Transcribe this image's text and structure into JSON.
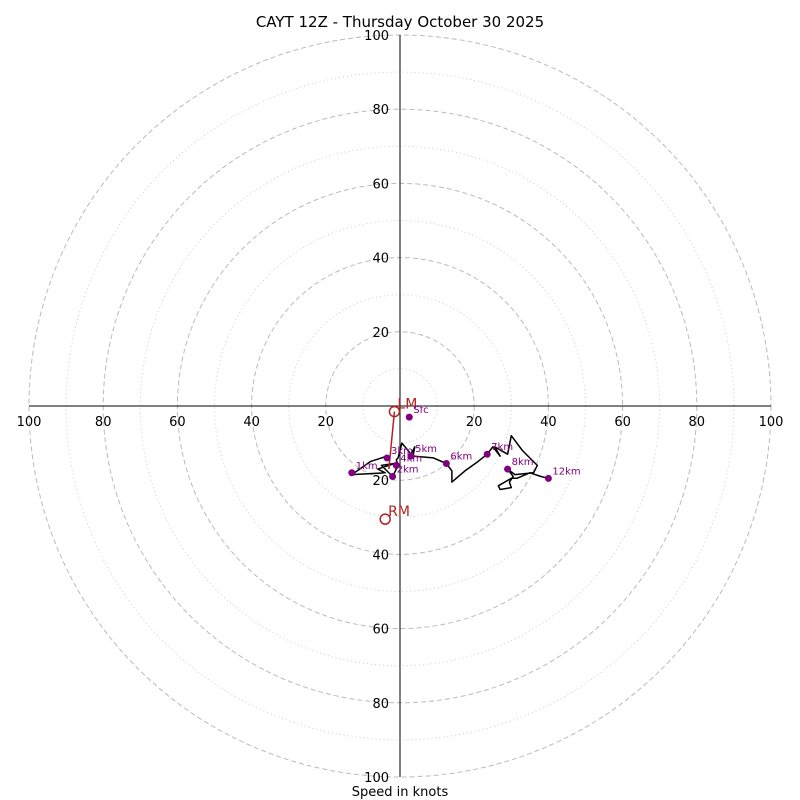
{
  "chart_data": {
    "type": "hodograph",
    "title": "CAYT 12Z - Thursday October 30 2025",
    "xlabel": "Speed in knots",
    "range": [
      -100,
      100
    ],
    "rings_major": [
      20,
      40,
      60,
      80,
      100
    ],
    "rings_minor": [
      10,
      30,
      50,
      70,
      90
    ],
    "ticks": [
      100,
      80,
      60,
      40,
      20
    ],
    "colors": {
      "trace": "#000000",
      "marker": "#800080",
      "motion": "#b22222",
      "ring_major": "#bbbbbb",
      "ring_minor": "#cccccc"
    },
    "trace": [
      [
        -3.5,
        -13.5
      ],
      [
        -8,
        -15
      ],
      [
        -13,
        -18.5
      ],
      [
        -4,
        -18
      ],
      [
        -6,
        -17
      ],
      [
        -1.5,
        -15.5
      ],
      [
        -5,
        -16
      ],
      [
        -2,
        -19
      ],
      [
        -0.5,
        -16
      ],
      [
        -1,
        -14.5
      ],
      [
        -0.5,
        -14
      ],
      [
        0.5,
        -10
      ],
      [
        3,
        -13
      ],
      [
        4,
        -11
      ],
      [
        3.5,
        -13.5
      ],
      [
        9,
        -14
      ],
      [
        12.5,
        -15.5
      ],
      [
        14,
        -17.5
      ],
      [
        14,
        -20.5
      ],
      [
        17.5,
        -17.5
      ],
      [
        21,
        -15
      ],
      [
        23.5,
        -13
      ],
      [
        25,
        -11
      ],
      [
        27,
        -13.5
      ],
      [
        25.5,
        -11
      ],
      [
        29,
        -13
      ],
      [
        30,
        -8
      ],
      [
        33,
        -12
      ],
      [
        37,
        -16
      ],
      [
        36,
        -18
      ],
      [
        31,
        -18.5
      ],
      [
        29,
        -17
      ],
      [
        30.5,
        -19
      ],
      [
        29.5,
        -20.5
      ],
      [
        30,
        -22
      ],
      [
        27,
        -22.5
      ],
      [
        26.5,
        -21.5
      ],
      [
        30,
        -19.5
      ],
      [
        31.5,
        -19.5
      ],
      [
        35,
        -18
      ],
      [
        38,
        -19
      ],
      [
        40,
        -19.5
      ]
    ],
    "heights": [
      {
        "label": "Sfc",
        "u": 2.5,
        "v": -3
      },
      {
        "label": "1km",
        "u": -13,
        "v": -18
      },
      {
        "label": "2km",
        "u": -2,
        "v": -19
      },
      {
        "label": "3km",
        "u": -3.5,
        "v": -14
      },
      {
        "label": "4km",
        "u": -1,
        "v": -16
      },
      {
        "label": "5km",
        "u": 3,
        "v": -13.5
      },
      {
        "label": "6km",
        "u": 12.5,
        "v": -15.5
      },
      {
        "label": "7km",
        "u": 23.5,
        "v": -13
      },
      {
        "label": "8km",
        "u": 29,
        "v": -17
      },
      {
        "label": "12km",
        "u": 40,
        "v": -19.5
      }
    ],
    "storm_motion": [
      {
        "label": "LM",
        "u": -1.5,
        "v": -1.5
      },
      {
        "label": "RM",
        "u": -4,
        "v": -30.5
      }
    ],
    "motion_line_to": [
      -3,
      -17
    ]
  }
}
